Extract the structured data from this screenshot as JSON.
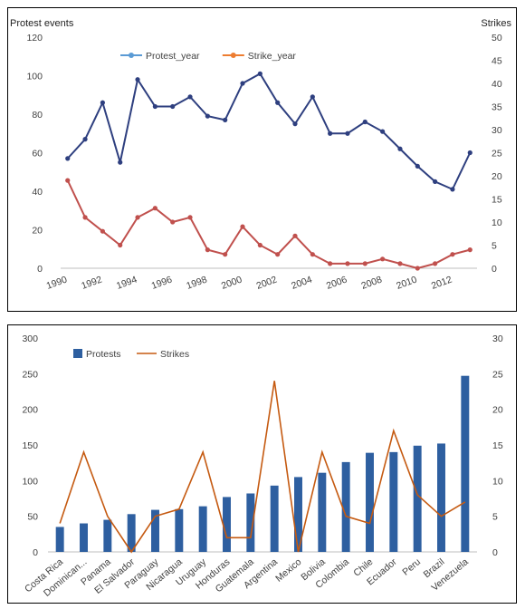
{
  "chart_data": [
    {
      "type": "line",
      "ylabel": "Protest events",
      "y2label": "Strikes",
      "ylim": [
        0,
        120
      ],
      "y2lim": [
        0,
        50
      ],
      "yticks": [
        0,
        20,
        40,
        60,
        80,
        100,
        120
      ],
      "y2ticks": [
        0,
        5,
        10,
        15,
        20,
        25,
        30,
        35,
        40,
        45,
        50
      ],
      "x": [
        1990,
        1991,
        1992,
        1993,
        1994,
        1995,
        1996,
        1997,
        1998,
        1999,
        2000,
        2001,
        2002,
        2003,
        2004,
        2005,
        2006,
        2007,
        2008,
        2009,
        2010,
        2011,
        2012,
        2013
      ],
      "xtick_labels": [
        "1990",
        "1992",
        "1994",
        "1996",
        "1998",
        "2000",
        "2002",
        "2004",
        "2006",
        "2008",
        "2010",
        "2012"
      ],
      "legend_position": "top",
      "grid": false,
      "series": [
        {
          "name": "Protest_year",
          "axis": "left",
          "color": "#2e3f7f",
          "legend_color": "#5b9bd5",
          "values": [
            57,
            67,
            86,
            55,
            98,
            84,
            84,
            89,
            79,
            77,
            96,
            101,
            86,
            75,
            89,
            70,
            70,
            76,
            71,
            62,
            53,
            45,
            41,
            60
          ]
        },
        {
          "name": "Strike_year",
          "axis": "right",
          "color": "#c0504d",
          "legend_color": "#ed7d31",
          "values": [
            19,
            11,
            8,
            5,
            11,
            13,
            10,
            11,
            4,
            3,
            9,
            5,
            3,
            7,
            3,
            1,
            1,
            1,
            2,
            1,
            0,
            1,
            3,
            4
          ]
        }
      ]
    },
    {
      "type": "bar",
      "categories": [
        "Costa Rica",
        "Dominican...",
        "Panama",
        "El Salvador",
        "Paraguay",
        "Nicaragua",
        "Uruguay",
        "Honduras",
        "Guatemala",
        "Argentina",
        "Mexico",
        "Bolivia",
        "Colombia",
        "Chile",
        "Ecuador",
        "Peru",
        "Brazil",
        "Venezuela"
      ],
      "ylim": [
        0,
        300
      ],
      "y2lim": [
        0,
        30
      ],
      "yticks": [
        0,
        50,
        100,
        150,
        200,
        250,
        300
      ],
      "y2ticks": [
        0,
        5,
        10,
        15,
        20,
        25,
        30
      ],
      "legend_position": "top-left",
      "grid": false,
      "series": [
        {
          "name": "Protests",
          "type": "bar",
          "axis": "left",
          "color": "#2e5fa0",
          "values": [
            35,
            40,
            45,
            53,
            59,
            60,
            64,
            77,
            82,
            93,
            105,
            111,
            126,
            139,
            140,
            149,
            152,
            247
          ]
        },
        {
          "name": "Strikes",
          "type": "line",
          "axis": "right",
          "color": "#c55a11",
          "values": [
            4,
            14,
            5,
            0,
            5,
            6,
            14,
            2,
            2,
            24,
            0,
            14,
            5,
            4,
            17,
            8,
            5,
            7
          ]
        }
      ]
    }
  ]
}
